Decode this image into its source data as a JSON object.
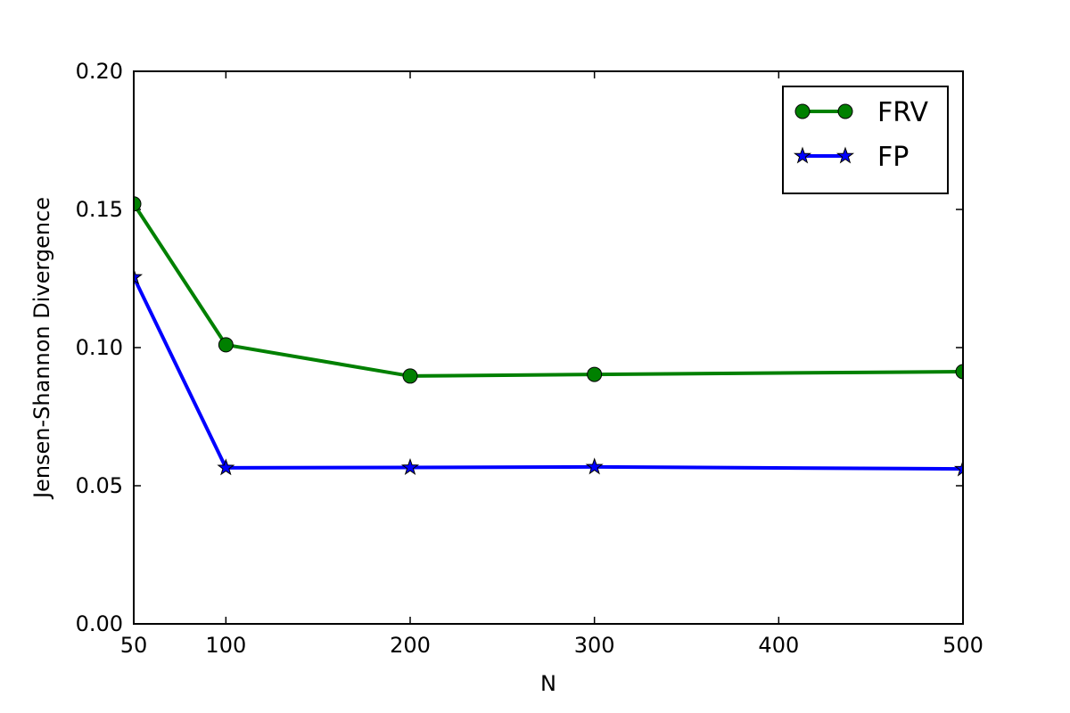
{
  "chart_data": {
    "type": "line",
    "x_label": "N",
    "y_label": "Jensen-Shannon Divergence",
    "x": [
      50,
      100,
      200,
      300,
      500
    ],
    "series": [
      {
        "name": "FRV",
        "color": "#008000",
        "marker": "circle",
        "values": [
          0.152,
          0.101,
          0.0897,
          0.0903,
          0.0913
        ]
      },
      {
        "name": "FP",
        "color": "#0000ff",
        "marker": "star",
        "values": [
          0.1255,
          0.0565,
          0.0566,
          0.0568,
          0.0561
        ]
      }
    ],
    "xlim": [
      50,
      500
    ],
    "xticks": [
      50,
      100,
      200,
      300,
      400,
      500
    ],
    "ylim": [
      0,
      0.2
    ],
    "yticks": [
      {
        "value": 0,
        "label": "0.00"
      },
      {
        "value": 0.05,
        "label": "0.05"
      },
      {
        "value": 0.1,
        "label": "0.10"
      },
      {
        "value": 0.15,
        "label": "0.15"
      },
      {
        "value": 0.2,
        "label": "0.20"
      }
    ],
    "legend": "upper right",
    "grid": false
  }
}
